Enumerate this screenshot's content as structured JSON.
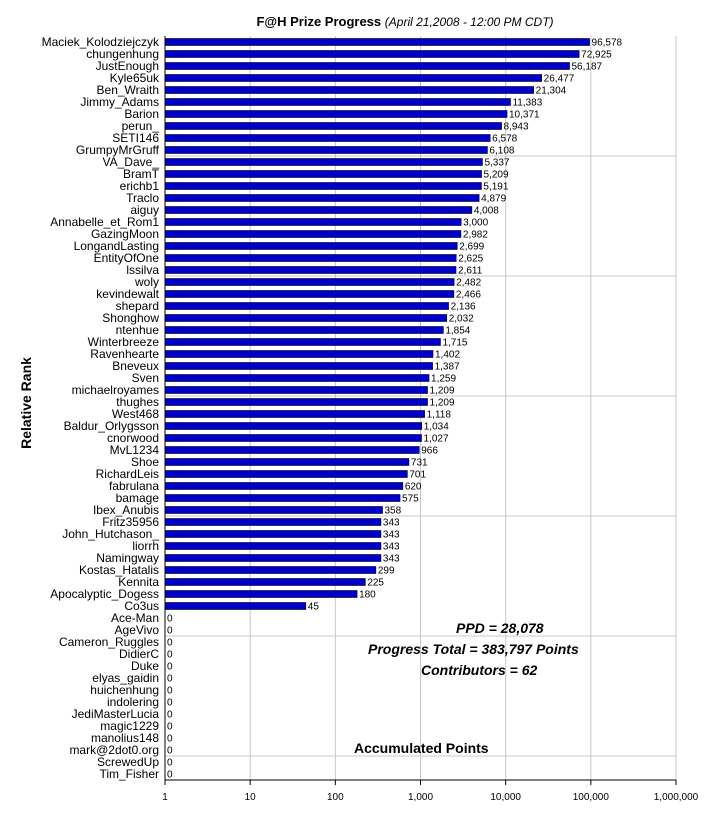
{
  "chart_data": {
    "type": "bar",
    "orientation": "horizontal",
    "title": "F@H Prize Progress",
    "subtitle": "(April 21,2008 -  12:00 PM CDT)",
    "xlabel": "Accumulated Points",
    "ylabel": "Relative Rank",
    "x_scale": "log",
    "xlim": [
      1,
      1000000
    ],
    "x_ticks": [
      "1",
      "10",
      "100",
      "1,000",
      "10,000",
      "100,000",
      "1,000,000"
    ],
    "bar_color": "#0000cc",
    "categories": [
      "Maciek_Kolodziejczyk",
      "chungenhung",
      "JustEnough",
      "Kyle65uk",
      "Ben_Wraith",
      "Jimmy_Adams",
      "Barion",
      "perun_",
      "SETI146",
      "GrumpyMrGruff",
      "VA_Dave_",
      "BramT",
      "erichb1",
      "Traclo",
      "aiguy",
      "Annabelle_et_Rom1",
      "GazingMoon",
      "LongandLasting",
      "EntityOfOne",
      "lssilva",
      "woly",
      "kevindewalt",
      "shepard",
      "Shonghow",
      "ntenhue",
      "Winterbreeze",
      "Ravenhearte",
      "Bneveux",
      "Sven",
      "michaelroyames",
      "thughes",
      "West468",
      "Baldur_Orlygsson",
      "cnorwood",
      "MvL1234",
      "Shoe",
      "RichardLeis",
      "fabrulana",
      "bamage",
      "Ibex_Anubis",
      "Fritz35956",
      "John_Hutchason_",
      "liorrh",
      "Namingway",
      "Kostas_Hatalis",
      "Kennita",
      "Apocalyptic_Dogess",
      "Co3us",
      "Ace-Man",
      "AgeVivo",
      "Cameron_Ruggles",
      "DidierC",
      "Duke",
      "elyas_gaidin",
      "huichenhung",
      "indolering",
      "JediMasterLucia",
      "magic1229",
      "manolius148",
      "mark@2dot0.org",
      "ScrewedUp",
      "Tim_Fisher"
    ],
    "values": [
      96578,
      72925,
      56187,
      26477,
      21304,
      11383,
      10371,
      8943,
      6578,
      6108,
      5337,
      5209,
      5191,
      4879,
      4008,
      3000,
      2982,
      2699,
      2625,
      2611,
      2482,
      2466,
      2136,
      2032,
      1854,
      1715,
      1402,
      1387,
      1259,
      1209,
      1209,
      1118,
      1034,
      1027,
      966,
      731,
      701,
      620,
      575,
      358,
      343,
      343,
      343,
      343,
      299,
      225,
      180,
      45,
      0,
      0,
      0,
      0,
      0,
      0,
      0,
      0,
      0,
      0,
      0,
      0,
      0,
      0
    ],
    "value_labels": [
      "96,578",
      "72,925",
      "56,187",
      "26,477",
      "21,304",
      "11,383",
      "10,371",
      "8,943",
      "6,578",
      "6,108",
      "5,337",
      "5,209",
      "5,191",
      "4,879",
      "4,008",
      "3,000",
      "2,982",
      "2,699",
      "2,625",
      "2,611",
      "2,482",
      "2,466",
      "2,136",
      "2,032",
      "1,854",
      "1,715",
      "1,402",
      "1,387",
      "1,259",
      "1,209",
      "1,209",
      "1,118",
      "1,034",
      "1,027",
      "966",
      "731",
      "701",
      "620",
      "575",
      "358",
      "343",
      "343",
      "343",
      "343",
      "299",
      "225",
      "180",
      "45",
      "0",
      "0",
      "0",
      "0",
      "0",
      "0",
      "0",
      "0",
      "0",
      "0",
      "0",
      "0",
      "0",
      "0"
    ]
  },
  "annotations": {
    "ppd": "PPD = 28,078",
    "progress_total": "Progress Total = 383,797 Points",
    "contributors": "Contributors = 62"
  }
}
